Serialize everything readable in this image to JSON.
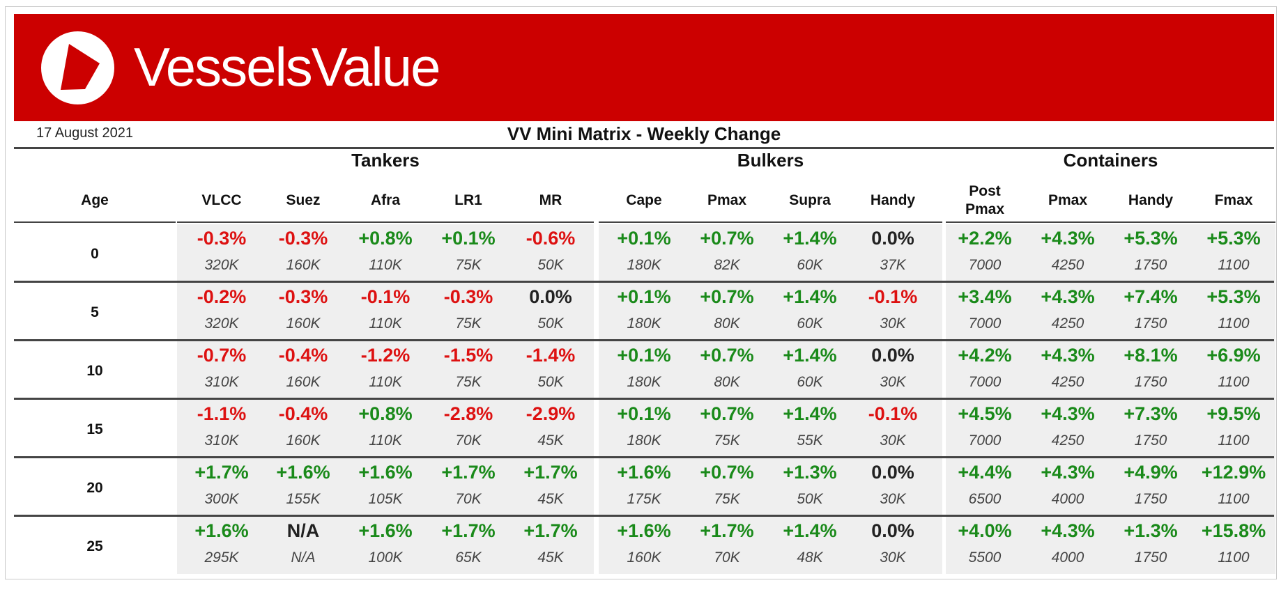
{
  "brand": {
    "name": "VesselsValue",
    "bg_color": "#cc0000",
    "logo_icon": "vesselsvalue-logo-icon"
  },
  "header": {
    "date": "17 August 2021",
    "title": "VV Mini Matrix - Weekly Change"
  },
  "groups": [
    {
      "label": "Tankers"
    },
    {
      "label": "Bulkers"
    },
    {
      "label": "Containers"
    }
  ],
  "columns": {
    "age": "Age",
    "tankers": [
      "VLCC",
      "Suez",
      "Afra",
      "LR1",
      "MR"
    ],
    "bulkers": [
      "Cape",
      "Pmax",
      "Supra",
      "Handy"
    ],
    "containers": [
      "Post\nPmax",
      "Pmax",
      "Handy",
      "Fmax"
    ]
  },
  "colors": {
    "positive": "#1a8a1a",
    "negative": "#dd1111",
    "neutral": "#222222",
    "shade": "#efefef"
  },
  "rows": [
    {
      "age": "0",
      "tankers": [
        [
          "-0.3%",
          "320K"
        ],
        [
          "-0.3%",
          "160K"
        ],
        [
          "+0.8%",
          "110K"
        ],
        [
          "+0.1%",
          "75K"
        ],
        [
          "-0.6%",
          "50K"
        ]
      ],
      "bulkers": [
        [
          "+0.1%",
          "180K"
        ],
        [
          "+0.7%",
          "82K"
        ],
        [
          "+1.4%",
          "60K"
        ],
        [
          "0.0%",
          "37K"
        ]
      ],
      "containers": [
        [
          "+2.2%",
          "7000"
        ],
        [
          "+4.3%",
          "4250"
        ],
        [
          "+5.3%",
          "1750"
        ],
        [
          "+5.3%",
          "1100"
        ]
      ]
    },
    {
      "age": "5",
      "tankers": [
        [
          "-0.2%",
          "320K"
        ],
        [
          "-0.3%",
          "160K"
        ],
        [
          "-0.1%",
          "110K"
        ],
        [
          "-0.3%",
          "75K"
        ],
        [
          "0.0%",
          "50K"
        ]
      ],
      "bulkers": [
        [
          "+0.1%",
          "180K"
        ],
        [
          "+0.7%",
          "80K"
        ],
        [
          "+1.4%",
          "60K"
        ],
        [
          "-0.1%",
          "30K"
        ]
      ],
      "containers": [
        [
          "+3.4%",
          "7000"
        ],
        [
          "+4.3%",
          "4250"
        ],
        [
          "+7.4%",
          "1750"
        ],
        [
          "+5.3%",
          "1100"
        ]
      ]
    },
    {
      "age": "10",
      "tankers": [
        [
          "-0.7%",
          "310K"
        ],
        [
          "-0.4%",
          "160K"
        ],
        [
          "-1.2%",
          "110K"
        ],
        [
          "-1.5%",
          "75K"
        ],
        [
          "-1.4%",
          "50K"
        ]
      ],
      "bulkers": [
        [
          "+0.1%",
          "180K"
        ],
        [
          "+0.7%",
          "80K"
        ],
        [
          "+1.4%",
          "60K"
        ],
        [
          "0.0%",
          "30K"
        ]
      ],
      "containers": [
        [
          "+4.2%",
          "7000"
        ],
        [
          "+4.3%",
          "4250"
        ],
        [
          "+8.1%",
          "1750"
        ],
        [
          "+6.9%",
          "1100"
        ]
      ]
    },
    {
      "age": "15",
      "tankers": [
        [
          "-1.1%",
          "310K"
        ],
        [
          "-0.4%",
          "160K"
        ],
        [
          "+0.8%",
          "110K"
        ],
        [
          "-2.8%",
          "70K"
        ],
        [
          "-2.9%",
          "45K"
        ]
      ],
      "bulkers": [
        [
          "+0.1%",
          "180K"
        ],
        [
          "+0.7%",
          "75K"
        ],
        [
          "+1.4%",
          "55K"
        ],
        [
          "-0.1%",
          "30K"
        ]
      ],
      "containers": [
        [
          "+4.5%",
          "7000"
        ],
        [
          "+4.3%",
          "4250"
        ],
        [
          "+7.3%",
          "1750"
        ],
        [
          "+9.5%",
          "1100"
        ]
      ]
    },
    {
      "age": "20",
      "tankers": [
        [
          "+1.7%",
          "300K"
        ],
        [
          "+1.6%",
          "155K"
        ],
        [
          "+1.6%",
          "105K"
        ],
        [
          "+1.7%",
          "70K"
        ],
        [
          "+1.7%",
          "45K"
        ]
      ],
      "bulkers": [
        [
          "+1.6%",
          "175K"
        ],
        [
          "+0.7%",
          "75K"
        ],
        [
          "+1.3%",
          "50K"
        ],
        [
          "0.0%",
          "30K"
        ]
      ],
      "containers": [
        [
          "+4.4%",
          "6500"
        ],
        [
          "+4.3%",
          "4000"
        ],
        [
          "+4.9%",
          "1750"
        ],
        [
          "+12.9%",
          "1100"
        ]
      ]
    },
    {
      "age": "25",
      "tankers": [
        [
          "+1.6%",
          "295K"
        ],
        [
          "N/A",
          "N/A"
        ],
        [
          "+1.6%",
          "100K"
        ],
        [
          "+1.7%",
          "65K"
        ],
        [
          "+1.7%",
          "45K"
        ]
      ],
      "bulkers": [
        [
          "+1.6%",
          "160K"
        ],
        [
          "+1.7%",
          "70K"
        ],
        [
          "+1.4%",
          "48K"
        ],
        [
          "0.0%",
          "30K"
        ]
      ],
      "containers": [
        [
          "+4.0%",
          "5500"
        ],
        [
          "+4.3%",
          "4000"
        ],
        [
          "+1.3%",
          "1750"
        ],
        [
          "+15.8%",
          "1100"
        ]
      ]
    }
  ]
}
